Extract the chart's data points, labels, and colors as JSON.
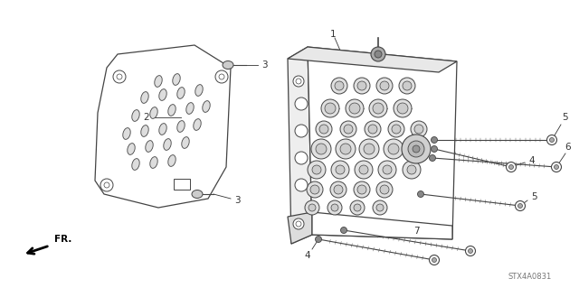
{
  "bg_color": "#ffffff",
  "line_color": "#444444",
  "text_color": "#222222",
  "diagram_code": "STX4A0831",
  "fr_label": "FR.",
  "lw_main": 0.9,
  "lw_detail": 0.6,
  "lw_thin": 0.4
}
